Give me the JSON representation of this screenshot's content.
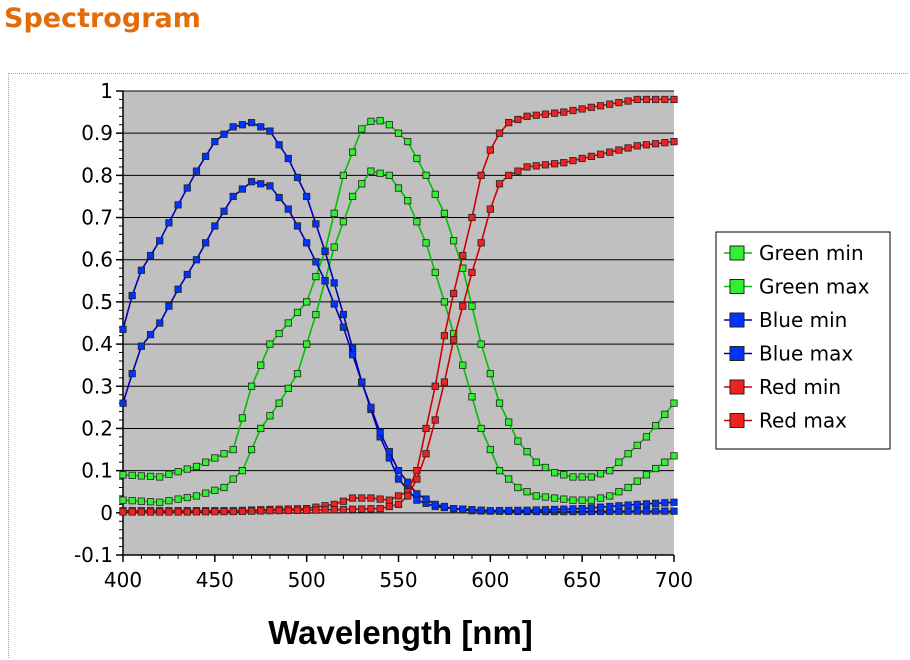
{
  "page": {
    "title": "Spectrogram"
  },
  "chart_data": {
    "type": "line",
    "title": "",
    "xlabel": "Wavelength [nm]",
    "ylabel": "",
    "xlim": [
      400,
      700
    ],
    "ylim": [
      -0.1,
      1.0
    ],
    "x_ticks": [
      400,
      450,
      500,
      550,
      600,
      650,
      700
    ],
    "y_ticks": [
      -0.1,
      0,
      0.1,
      0.2,
      0.3,
      0.4,
      0.5,
      0.6,
      0.7,
      0.8,
      0.9,
      1
    ],
    "x_tick_labels": [
      "400",
      "450",
      "500",
      "550",
      "600",
      "650",
      "700"
    ],
    "y_tick_labels": [
      "-0.1",
      "0",
      "0.1",
      "0.2",
      "0.3",
      "0.4",
      "0.5",
      "0.6",
      "0.7",
      "0.8",
      "0.9",
      "1"
    ],
    "grid": true,
    "legend_position": "right",
    "plot_background": "#c0c0c0",
    "marker": "square",
    "series": [
      {
        "name": "Green min",
        "color": "#00c000",
        "marker_color": "#33ee33",
        "points": [
          [
            400,
            0.09
          ],
          [
            420,
            0.085
          ],
          [
            440,
            0.11
          ],
          [
            460,
            0.15
          ],
          [
            470,
            0.3
          ],
          [
            480,
            0.4
          ],
          [
            490,
            0.45
          ],
          [
            500,
            0.5
          ],
          [
            510,
            0.62
          ],
          [
            520,
            0.8
          ],
          [
            530,
            0.91
          ],
          [
            537,
            0.935
          ],
          [
            545,
            0.92
          ],
          [
            555,
            0.88
          ],
          [
            565,
            0.8
          ],
          [
            575,
            0.71
          ],
          [
            585,
            0.58
          ],
          [
            595,
            0.4
          ],
          [
            605,
            0.26
          ],
          [
            615,
            0.17
          ],
          [
            625,
            0.12
          ],
          [
            635,
            0.095
          ],
          [
            645,
            0.085
          ],
          [
            655,
            0.085
          ],
          [
            665,
            0.1
          ],
          [
            675,
            0.14
          ],
          [
            685,
            0.18
          ],
          [
            700,
            0.26
          ]
        ]
      },
      {
        "name": "Green max",
        "color": "#00c000",
        "marker_color": "#33ee33",
        "points": [
          [
            400,
            0.03
          ],
          [
            420,
            0.025
          ],
          [
            440,
            0.04
          ],
          [
            455,
            0.06
          ],
          [
            465,
            0.1
          ],
          [
            475,
            0.2
          ],
          [
            485,
            0.26
          ],
          [
            495,
            0.33
          ],
          [
            505,
            0.47
          ],
          [
            515,
            0.63
          ],
          [
            525,
            0.75
          ],
          [
            535,
            0.81
          ],
          [
            545,
            0.8
          ],
          [
            555,
            0.74
          ],
          [
            565,
            0.64
          ],
          [
            575,
            0.5
          ],
          [
            585,
            0.35
          ],
          [
            595,
            0.2
          ],
          [
            605,
            0.1
          ],
          [
            615,
            0.06
          ],
          [
            625,
            0.04
          ],
          [
            635,
            0.035
          ],
          [
            645,
            0.03
          ],
          [
            655,
            0.03
          ],
          [
            665,
            0.04
          ],
          [
            675,
            0.06
          ],
          [
            685,
            0.09
          ],
          [
            700,
            0.135
          ]
        ]
      },
      {
        "name": "Blue min",
        "color": "#0000b0",
        "marker_color": "#0033ff",
        "points": [
          [
            400,
            0.435
          ],
          [
            405,
            0.515
          ],
          [
            410,
            0.575
          ],
          [
            420,
            0.645
          ],
          [
            430,
            0.73
          ],
          [
            440,
            0.81
          ],
          [
            450,
            0.88
          ],
          [
            460,
            0.915
          ],
          [
            470,
            0.925
          ],
          [
            480,
            0.905
          ],
          [
            490,
            0.84
          ],
          [
            500,
            0.75
          ],
          [
            510,
            0.62
          ],
          [
            520,
            0.47
          ],
          [
            530,
            0.31
          ],
          [
            540,
            0.18
          ],
          [
            550,
            0.08
          ],
          [
            560,
            0.03
          ],
          [
            570,
            0.015
          ],
          [
            580,
            0.01
          ],
          [
            590,
            0.005
          ],
          [
            600,
            0.004
          ],
          [
            620,
            0.003
          ],
          [
            650,
            0.003
          ],
          [
            680,
            0.004
          ],
          [
            700,
            0.004
          ]
        ]
      },
      {
        "name": "Blue max",
        "color": "#0000b0",
        "marker_color": "#0033ff",
        "points": [
          [
            400,
            0.26
          ],
          [
            405,
            0.33
          ],
          [
            410,
            0.395
          ],
          [
            420,
            0.45
          ],
          [
            430,
            0.53
          ],
          [
            440,
            0.6
          ],
          [
            450,
            0.68
          ],
          [
            460,
            0.75
          ],
          [
            470,
            0.785
          ],
          [
            480,
            0.775
          ],
          [
            490,
            0.72
          ],
          [
            500,
            0.64
          ],
          [
            510,
            0.55
          ],
          [
            520,
            0.44
          ],
          [
            530,
            0.31
          ],
          [
            540,
            0.19
          ],
          [
            550,
            0.1
          ],
          [
            560,
            0.045
          ],
          [
            570,
            0.02
          ],
          [
            580,
            0.01
          ],
          [
            600,
            0.005
          ],
          [
            620,
            0.006
          ],
          [
            650,
            0.01
          ],
          [
            680,
            0.02
          ],
          [
            700,
            0.025
          ]
        ]
      },
      {
        "name": "Red min",
        "color": "#d00000",
        "marker_color": "#ee2222",
        "points": [
          [
            400,
            0.005
          ],
          [
            430,
            0.005
          ],
          [
            460,
            0.005
          ],
          [
            480,
            0.008
          ],
          [
            500,
            0.01
          ],
          [
            515,
            0.02
          ],
          [
            525,
            0.035
          ],
          [
            535,
            0.035
          ],
          [
            545,
            0.03
          ],
          [
            555,
            0.05
          ],
          [
            560,
            0.1
          ],
          [
            565,
            0.2
          ],
          [
            570,
            0.3
          ],
          [
            575,
            0.42
          ],
          [
            580,
            0.52
          ],
          [
            585,
            0.61
          ],
          [
            590,
            0.7
          ],
          [
            595,
            0.8
          ],
          [
            600,
            0.86
          ],
          [
            605,
            0.9
          ],
          [
            610,
            0.925
          ],
          [
            620,
            0.94
          ],
          [
            640,
            0.95
          ],
          [
            660,
            0.965
          ],
          [
            680,
            0.98
          ],
          [
            700,
            0.98
          ]
        ]
      },
      {
        "name": "Red max",
        "color": "#d00000",
        "marker_color": "#ee2222",
        "points": [
          [
            400,
            0.002
          ],
          [
            430,
            0.002
          ],
          [
            460,
            0.003
          ],
          [
            480,
            0.005
          ],
          [
            500,
            0.006
          ],
          [
            520,
            0.008
          ],
          [
            540,
            0.01
          ],
          [
            550,
            0.02
          ],
          [
            555,
            0.04
          ],
          [
            560,
            0.08
          ],
          [
            565,
            0.14
          ],
          [
            570,
            0.22
          ],
          [
            575,
            0.31
          ],
          [
            580,
            0.41
          ],
          [
            585,
            0.49
          ],
          [
            590,
            0.57
          ],
          [
            595,
            0.64
          ],
          [
            600,
            0.72
          ],
          [
            605,
            0.78
          ],
          [
            610,
            0.8
          ],
          [
            620,
            0.82
          ],
          [
            640,
            0.83
          ],
          [
            660,
            0.85
          ],
          [
            680,
            0.87
          ],
          [
            700,
            0.88
          ]
        ]
      }
    ]
  }
}
